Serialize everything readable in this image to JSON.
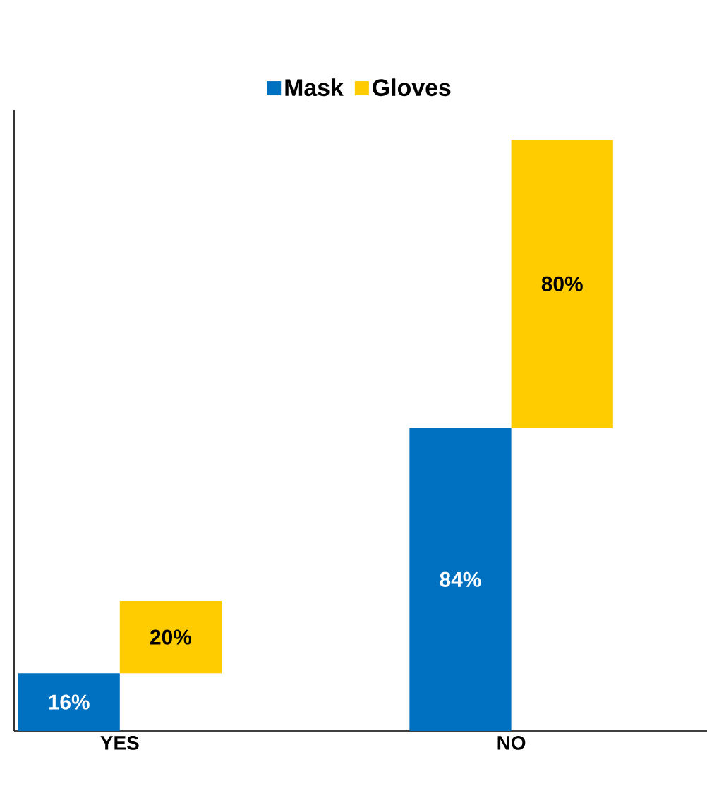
{
  "chart_data": {
    "type": "bar",
    "categories": [
      "YES",
      "NO"
    ],
    "stacked": true,
    "legend": "top",
    "series": [
      {
        "name": "Mask",
        "color": "#0070c0",
        "values": [
          16,
          84
        ],
        "value_labels": [
          "16%",
          "84%"
        ]
      },
      {
        "name": "Gloves",
        "color": "#ffcc00",
        "values": [
          20,
          80
        ],
        "value_labels": [
          "20%",
          "80%"
        ]
      }
    ]
  }
}
